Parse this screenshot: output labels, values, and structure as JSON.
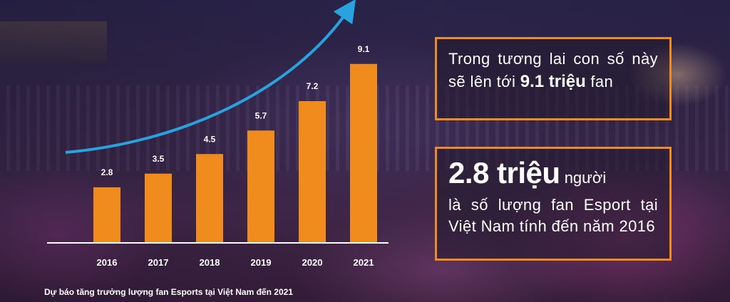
{
  "chart_data": {
    "type": "bar",
    "categories": [
      "2016",
      "2017",
      "2018",
      "2019",
      "2020",
      "2021"
    ],
    "values": [
      2.8,
      3.5,
      4.5,
      5.7,
      7.2,
      9.1
    ],
    "value_labels": [
      "2.8",
      "3.5",
      "4.5",
      "5.7",
      "7.2",
      "9.1"
    ],
    "title": "Dự báo tăng trưởng lượng fan Esports tại Việt Nam đến 2021",
    "xlabel": "",
    "ylabel": "",
    "ylim": [
      0,
      10
    ],
    "grid": false,
    "bar_color": "#f08c1e",
    "arrow_color": "#29a3e0"
  },
  "caption": "Dự báo tăng trưởng lượng fan Esports tại Việt Nam đến 2021",
  "box1": {
    "text_before": "Trong tương lai con số này sẽ lên tới ",
    "highlight": "9.1 triệu",
    "text_after": " fan"
  },
  "box2": {
    "highlight": "2.8 triệu",
    "text_after_highlight": " người",
    "text": "là số lượng fan Esport tại Việt Nam tính đến năm 2016"
  },
  "colors": {
    "accent": "#f08c1e",
    "arrow": "#29a3e0",
    "text": "#ffffff"
  }
}
